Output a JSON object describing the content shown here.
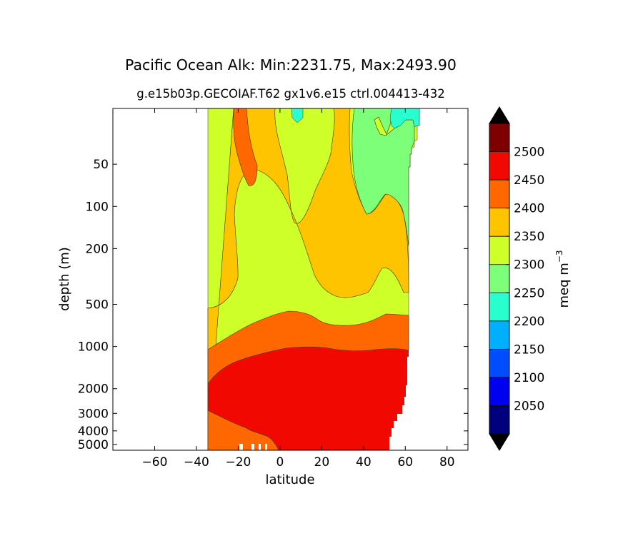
{
  "chart_data": {
    "type": "contourf",
    "title": "Pacific Ocean Alk: Min:2231.75, Max:2493.90",
    "subtitle": "g.e15b03p.GECOIAF.T62 gx1v6.e15 ctrl.004413-432",
    "xlabel": "latitude",
    "ylabel": "depth (m)",
    "xlim": [
      -80,
      90
    ],
    "x_ticks": [
      -60,
      -40,
      -20,
      0,
      20,
      40,
      60,
      80
    ],
    "x_tick_labels": [
      "−60",
      "−40",
      "−20",
      "0",
      "20",
      "40",
      "60",
      "80"
    ],
    "y_scale": "log",
    "y_inverted": true,
    "ylim": [
      5500,
      20
    ],
    "y_ticks": [
      50,
      100,
      200,
      500,
      1000,
      2000,
      3000,
      4000,
      5000
    ],
    "y_tick_labels": [
      "50",
      "100",
      "200",
      "500",
      "1000",
      "2000",
      "3000",
      "4000",
      "5000"
    ],
    "colorbar": {
      "label": "meq m",
      "label_exponent": "−3",
      "levels": [
        2000,
        2050,
        2100,
        2150,
        2200,
        2250,
        2300,
        2350,
        2400,
        2450,
        2500,
        2550
      ],
      "colors": [
        "#00007f",
        "#0000f1",
        "#004cff",
        "#00b0ff",
        "#29ffce",
        "#7dff7a",
        "#ceff29",
        "#ffc400",
        "#ff6800",
        "#f10800",
        "#7f0000"
      ],
      "tick_values": [
        2050,
        2100,
        2150,
        2200,
        2250,
        2300,
        2350,
        2400,
        2450,
        2500
      ],
      "tick_labels": [
        "2050",
        "2100",
        "2150",
        "2200",
        "2250",
        "2300",
        "2350",
        "2400",
        "2450",
        "2500"
      ],
      "extend": "both",
      "over_color": "#000000",
      "under_color": "#000000"
    },
    "regions": [
      {
        "name": "2250-2300",
        "color": "#7dff7a"
      },
      {
        "name": "2200-2250",
        "color": "#29ffce"
      },
      {
        "name": "2300-2350",
        "color": "#ceff29"
      },
      {
        "name": "2350-2400",
        "color": "#ffc400"
      },
      {
        "name": "2400-2450",
        "color": "#ff6800"
      },
      {
        "name": "2450-2500",
        "color": "#f10800"
      }
    ]
  }
}
